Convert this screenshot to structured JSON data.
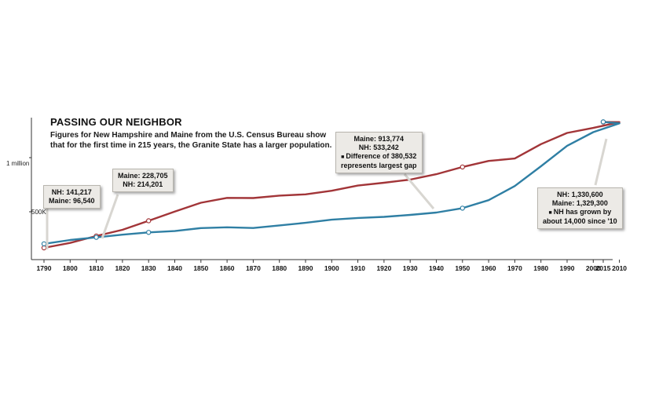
{
  "title": "PASSING OUR NEIGHBOR",
  "subtitle": "Figures for New Hampshire and Maine from the U.S. Census Bureau show that for the first time in 215 years, the Granite State has a larger population.",
  "colors": {
    "maine": "#a23538",
    "nh": "#2f7fa4",
    "axis": "#333333"
  },
  "y_tick_labels": [
    {
      "value": 500000,
      "label": "500K"
    },
    {
      "value": 1000000,
      "label": "1 million"
    }
  ],
  "callouts": [
    {
      "lines": [
        "NH: 141,217",
        "Maine: 96,540"
      ]
    },
    {
      "lines": [
        "Maine: 228,705",
        "NH: 214,201"
      ]
    },
    {
      "lines": [
        "Maine: 913,774",
        "NH: 533,242",
        "Difference of 380,532",
        "represents largest gap"
      ]
    },
    {
      "lines": [
        "NH: 1,330,600",
        "Maine: 1,329,300",
        "NH has grown by",
        "about 14,000 since '10"
      ]
    }
  ],
  "chart_data": {
    "type": "line",
    "title": "PASSING OUR NEIGHBOR",
    "x": [
      1790,
      1800,
      1810,
      1820,
      1830,
      1840,
      1850,
      1860,
      1870,
      1880,
      1890,
      1900,
      1910,
      1920,
      1930,
      1940,
      1950,
      1960,
      1970,
      1980,
      1990,
      2000,
      2010,
      2015
    ],
    "x_tick_labels": [
      "1790",
      "1800",
      "1810",
      "1820",
      "1830",
      "1840",
      "1850",
      "1860",
      "1870",
      "1880",
      "1890",
      "1900",
      "1910",
      "1920",
      "1930",
      "1940",
      "1950",
      "1960",
      "1970",
      "1980",
      "1990",
      "2000",
      "2010",
      "2015"
    ],
    "series": [
      {
        "name": "Maine",
        "values": [
          96540,
          151719,
          228705,
          298335,
          399455,
          501793,
          583169,
          628279,
          626915,
          648936,
          661086,
          694466,
          742371,
          768014,
          797423,
          847226,
          913774,
          969265,
          992048,
          1124660,
          1227928,
          1274923,
          1328361,
          1329300
        ]
      },
      {
        "name": "NH",
        "values": [
          141217,
          183858,
          214201,
          244022,
          269328,
          284574,
          317976,
          326073,
          318300,
          346991,
          376530,
          411588,
          430572,
          443083,
          465293,
          491524,
          533242,
          606921,
          737681,
          920610,
          1109252,
          1235786,
          1316470,
          1330600
        ]
      }
    ],
    "ylim": [
      0,
      1400000
    ],
    "y_ticks": [
      500000,
      1000000
    ],
    "grid": false,
    "highlighted_points": [
      {
        "year": 1790,
        "series": [
          "Maine",
          "NH"
        ]
      },
      {
        "year": 1810,
        "series": [
          "Maine",
          "NH"
        ]
      },
      {
        "year": 1830,
        "series": [
          "Maine",
          "NH"
        ]
      },
      {
        "year": 1950,
        "series": [
          "Maine",
          "NH"
        ]
      },
      {
        "year": 2015,
        "series": [
          "Maine",
          "NH"
        ]
      }
    ]
  }
}
